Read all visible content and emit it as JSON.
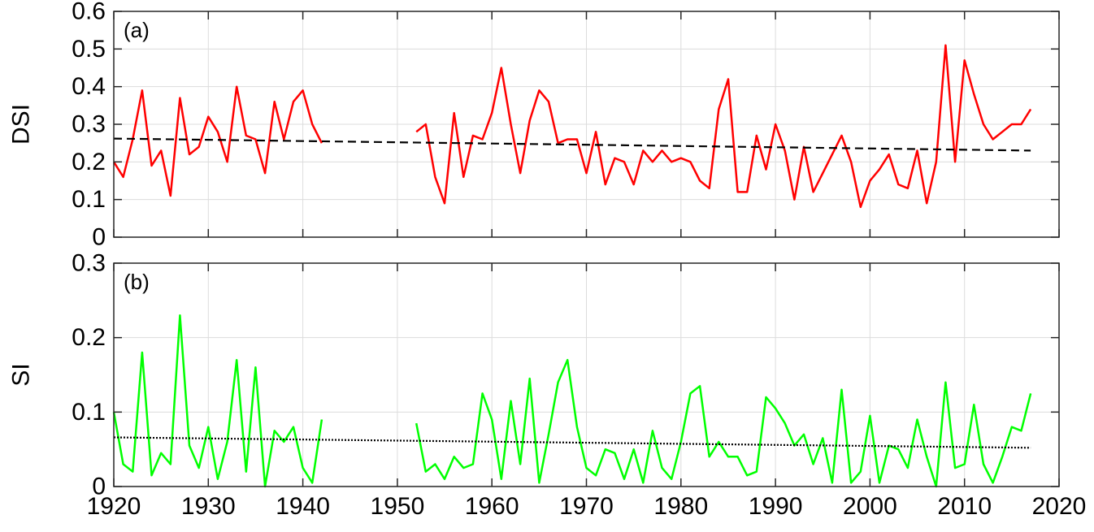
{
  "chart_data": [
    {
      "type": "line",
      "panel_label": "(a)",
      "ylabel": "DSI",
      "xlim": [
        1920,
        2020
      ],
      "ylim": [
        0,
        0.6
      ],
      "xticks": [
        1920,
        1930,
        1940,
        1950,
        1960,
        1970,
        1980,
        1990,
        2000,
        2010,
        2020
      ],
      "xtick_labels": [
        "1920",
        "1930",
        "1940",
        "1950",
        "1960",
        "1970",
        "1980",
        "1990",
        "2000",
        "2010",
        "2020"
      ],
      "yticks": [
        0,
        0.1,
        0.2,
        0.3,
        0.4,
        0.5,
        0.6
      ],
      "ytick_labels": [
        "0",
        "0.1",
        "0.2",
        "0.3",
        "0.4",
        "0.5",
        "0.6"
      ],
      "grid": true,
      "series": [
        {
          "color": "#ff0000",
          "style": "solid",
          "segments": [
            {
              "x": [
                1920,
                1921,
                1922,
                1923,
                1924,
                1925,
                1926,
                1927,
                1928,
                1929,
                1930,
                1931,
                1932,
                1933,
                1934,
                1935,
                1936,
                1937,
                1938,
                1939,
                1940,
                1941,
                1942
              ],
              "y": [
                0.2,
                0.16,
                0.26,
                0.39,
                0.19,
                0.23,
                0.11,
                0.37,
                0.22,
                0.24,
                0.32,
                0.28,
                0.2,
                0.4,
                0.27,
                0.26,
                0.17,
                0.36,
                0.26,
                0.36,
                0.39,
                0.3,
                0.25
              ]
            },
            {
              "x": [
                1952,
                1953,
                1954,
                1955,
                1956,
                1957,
                1958,
                1959,
                1960,
                1961,
                1962,
                1963,
                1964,
                1965,
                1966,
                1967,
                1968,
                1969,
                1970,
                1971,
                1972,
                1973,
                1974,
                1975,
                1976,
                1977,
                1978,
                1979,
                1980,
                1981,
                1982,
                1983,
                1984,
                1985,
                1986,
                1987,
                1988,
                1989,
                1990,
                1991,
                1992,
                1993,
                1994,
                1995,
                1996,
                1997,
                1998,
                1999,
                2000,
                2001,
                2002,
                2003,
                2004,
                2005,
                2006,
                2007,
                2008,
                2009,
                2010,
                2011,
                2012,
                2013,
                2014,
                2015,
                2016,
                2017
              ],
              "y": [
                0.28,
                0.3,
                0.16,
                0.09,
                0.33,
                0.16,
                0.27,
                0.26,
                0.33,
                0.45,
                0.3,
                0.17,
                0.31,
                0.39,
                0.36,
                0.25,
                0.26,
                0.26,
                0.17,
                0.28,
                0.14,
                0.21,
                0.2,
                0.14,
                0.23,
                0.2,
                0.23,
                0.2,
                0.21,
                0.2,
                0.15,
                0.13,
                0.34,
                0.42,
                0.12,
                0.12,
                0.27,
                0.18,
                0.3,
                0.23,
                0.1,
                0.24,
                0.12,
                0.17,
                0.22,
                0.27,
                0.2,
                0.08,
                0.15,
                0.18,
                0.22,
                0.14,
                0.13,
                0.23,
                0.09,
                0.2,
                0.51,
                0.2,
                0.47,
                0.38,
                0.3,
                0.26,
                0.28,
                0.3,
                0.3,
                0.34
              ]
            }
          ]
        },
        {
          "color": "#000000",
          "style": "dashed",
          "segments": [
            {
              "x": [
                1920,
                2017
              ],
              "y": [
                0.262,
                0.23
              ]
            }
          ]
        }
      ]
    },
    {
      "type": "line",
      "panel_label": "(b)",
      "ylabel": "SI",
      "xlim": [
        1920,
        2020
      ],
      "ylim": [
        0,
        0.3
      ],
      "xticks": [
        1920,
        1930,
        1940,
        1950,
        1960,
        1970,
        1980,
        1990,
        2000,
        2010,
        2020
      ],
      "xtick_labels": [
        "1920",
        "1930",
        "1940",
        "1950",
        "1960",
        "1970",
        "1980",
        "1990",
        "2000",
        "2010",
        "2020"
      ],
      "yticks": [
        0,
        0.1,
        0.2,
        0.3
      ],
      "ytick_labels": [
        "0",
        "0.1",
        "0.2",
        "0.3"
      ],
      "grid": true,
      "series": [
        {
          "color": "#00ff00",
          "style": "solid",
          "segments": [
            {
              "x": [
                1920,
                1921,
                1922,
                1923,
                1924,
                1925,
                1926,
                1927,
                1928,
                1929,
                1930,
                1931,
                1932,
                1933,
                1934,
                1935,
                1936,
                1937,
                1938,
                1939,
                1940,
                1941,
                1942
              ],
              "y": [
                0.1,
                0.03,
                0.02,
                0.18,
                0.015,
                0.045,
                0.03,
                0.23,
                0.055,
                0.025,
                0.08,
                0.01,
                0.06,
                0.17,
                0.02,
                0.16,
                0.0,
                0.075,
                0.06,
                0.08,
                0.025,
                0.005,
                0.09
              ]
            },
            {
              "x": [
                1952,
                1953,
                1954,
                1955,
                1956,
                1957,
                1958,
                1959,
                1960,
                1961,
                1962,
                1963,
                1964,
                1965,
                1966,
                1967,
                1968,
                1969,
                1970,
                1971,
                1972,
                1973,
                1974,
                1975,
                1976,
                1977,
                1978,
                1979,
                1980,
                1981,
                1982,
                1983,
                1984,
                1985,
                1986,
                1987,
                1988,
                1989,
                1990,
                1991,
                1992,
                1993,
                1994,
                1995,
                1996,
                1997,
                1998,
                1999,
                2000,
                2001,
                2002,
                2003,
                2004,
                2005,
                2006,
                2007,
                2008,
                2009,
                2010,
                2011,
                2012,
                2013,
                2014,
                2015,
                2016,
                2017
              ],
              "y": [
                0.085,
                0.02,
                0.03,
                0.01,
                0.04,
                0.025,
                0.03,
                0.125,
                0.09,
                0.01,
                0.115,
                0.03,
                0.145,
                0.005,
                0.07,
                0.14,
                0.17,
                0.08,
                0.025,
                0.015,
                0.05,
                0.045,
                0.01,
                0.05,
                0.005,
                0.075,
                0.025,
                0.01,
                0.06,
                0.125,
                0.135,
                0.04,
                0.06,
                0.04,
                0.04,
                0.015,
                0.02,
                0.12,
                0.105,
                0.085,
                0.055,
                0.07,
                0.03,
                0.065,
                0.005,
                0.13,
                0.005,
                0.02,
                0.095,
                0.005,
                0.055,
                0.05,
                0.025,
                0.09,
                0.04,
                0.0,
                0.14,
                0.025,
                0.03,
                0.11,
                0.03,
                0.005,
                0.04,
                0.08,
                0.075,
                0.125
              ]
            }
          ]
        },
        {
          "color": "#000000",
          "style": "dotted",
          "segments": [
            {
              "x": [
                1920,
                2017
              ],
              "y": [
                0.066,
                0.052
              ]
            }
          ]
        }
      ]
    }
  ]
}
